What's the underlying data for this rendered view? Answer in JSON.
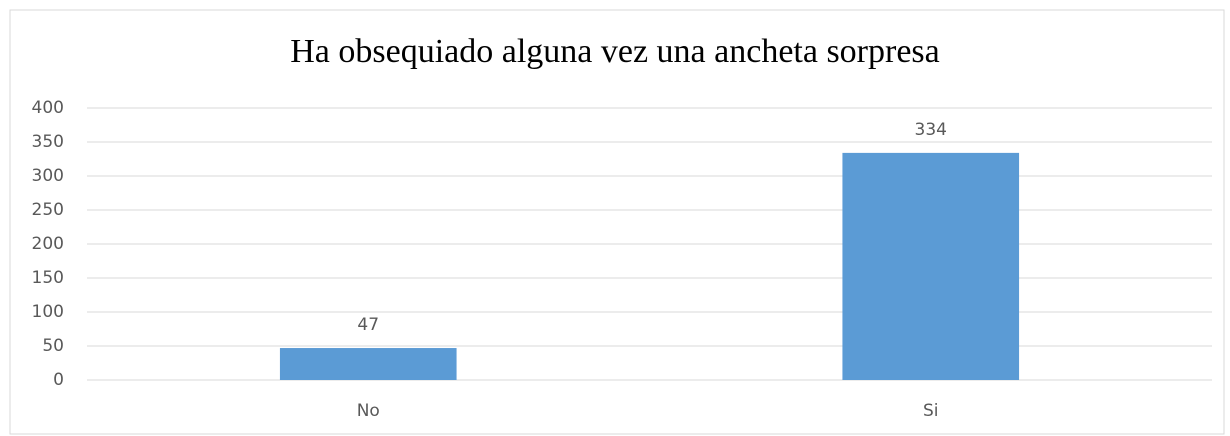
{
  "chart_data": {
    "type": "bar",
    "title": "Ha obsequiado alguna vez una ancheta sorpresa",
    "categories": [
      "No",
      "Si"
    ],
    "values": [
      47,
      334
    ],
    "color": "#5b9bd5",
    "ylim": [
      0,
      400
    ],
    "yticks": [
      0,
      50,
      100,
      150,
      200,
      250,
      300,
      350,
      400
    ],
    "grid": true,
    "data_labels": true
  }
}
